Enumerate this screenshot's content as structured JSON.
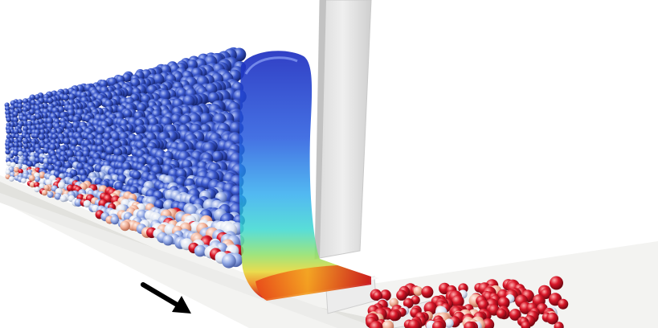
{
  "scene": {
    "kind": "granular-flow-simulation-render",
    "background_color": "#ffffff",
    "colors": {
      "particle_blue": "#2f4cc4",
      "particle_blue_light": "#6f8fe0",
      "particle_pale": "#d9e2f5",
      "particle_peach": "#f2b39a",
      "particle_red": "#d4172a",
      "particle_darkred": "#8a0a14",
      "channel_floor": "#f1f1ef",
      "wall": "#e6e6e6",
      "arrow": "#000000"
    },
    "icons": {
      "flow_direction": "arrow-down-right-icon"
    },
    "surface_colormap": [
      "#1f2fc0",
      "#1f5fe0",
      "#1fa8f0",
      "#2fd8d0",
      "#6fe08f",
      "#d8e040",
      "#f0a020",
      "#e04010",
      "#c00010"
    ]
  }
}
